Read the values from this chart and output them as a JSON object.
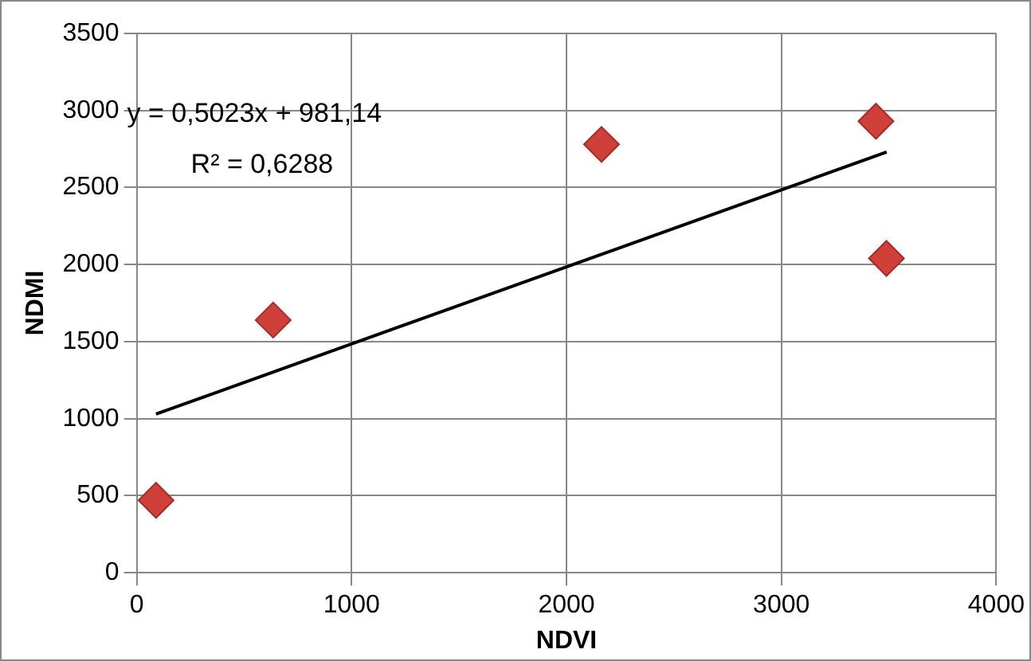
{
  "chart_data": {
    "type": "scatter",
    "xlabel": "NDVI",
    "ylabel": "NDMI",
    "x": [
      90,
      635,
      2163,
      3440,
      3489
    ],
    "series": [
      {
        "color": "#d0403b",
        "values": [
          470,
          1640,
          2780,
          2930,
          2040
        ],
        "marker": "diamond"
      },
      {
        "type": "line",
        "color": "#000000",
        "x": [
          90,
          3490
        ],
        "values": [
          1030,
          2730
        ],
        "marker": "none"
      }
    ],
    "xlim": [
      0,
      4000
    ],
    "xticks": [
      0,
      1000,
      2000,
      3000,
      4000
    ],
    "ylim": [
      0,
      3500
    ],
    "yticks": [
      0,
      500,
      1000,
      1500,
      2000,
      2500,
      3000,
      3500
    ],
    "grid": true,
    "legend": false,
    "annotations": [
      "y = 0,5023x + 981,14",
      "R² = 0,6288"
    ]
  }
}
